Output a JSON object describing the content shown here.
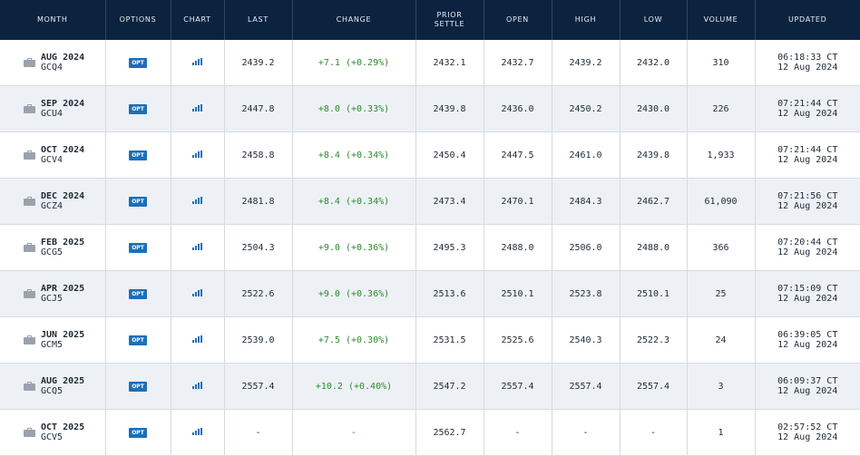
{
  "headers": {
    "month": "MONTH",
    "options": "OPTIONS",
    "chart": "CHART",
    "last": "LAST",
    "change": "CHANGE",
    "prior_settle_1": "PRIOR",
    "prior_settle_2": "SETTLE",
    "open": "OPEN",
    "high": "HIGH",
    "low": "LOW",
    "volume": "VOLUME",
    "updated": "UPDATED"
  },
  "opt_label": "OPT",
  "colors": {
    "header_bg": "#0c2340",
    "change_positive": "#2e8b2e",
    "opt_badge": "#1d6fb8"
  },
  "rows": [
    {
      "month": "AUG 2024",
      "code": "GCQ4",
      "last": "2439.2",
      "change": "+7.1 (+0.29%)",
      "prior": "2432.1",
      "open": "2432.7",
      "high": "2439.2",
      "low": "2432.0",
      "volume": "310",
      "time": "06:18:33 CT",
      "date": "12 Aug 2024"
    },
    {
      "month": "SEP 2024",
      "code": "GCU4",
      "last": "2447.8",
      "change": "+8.0 (+0.33%)",
      "prior": "2439.8",
      "open": "2436.0",
      "high": "2450.2",
      "low": "2430.0",
      "volume": "226",
      "time": "07:21:44 CT",
      "date": "12 Aug 2024"
    },
    {
      "month": "OCT 2024",
      "code": "GCV4",
      "last": "2458.8",
      "change": "+8.4 (+0.34%)",
      "prior": "2450.4",
      "open": "2447.5",
      "high": "2461.0",
      "low": "2439.8",
      "volume": "1,933",
      "time": "07:21:44 CT",
      "date": "12 Aug 2024"
    },
    {
      "month": "DEC 2024",
      "code": "GCZ4",
      "last": "2481.8",
      "change": "+8.4 (+0.34%)",
      "prior": "2473.4",
      "open": "2470.1",
      "high": "2484.3",
      "low": "2462.7",
      "volume": "61,090",
      "time": "07:21:56 CT",
      "date": "12 Aug 2024"
    },
    {
      "month": "FEB 2025",
      "code": "GCG5",
      "last": "2504.3",
      "change": "+9.0 (+0.36%)",
      "prior": "2495.3",
      "open": "2488.0",
      "high": "2506.0",
      "low": "2488.0",
      "volume": "366",
      "time": "07:20:44 CT",
      "date": "12 Aug 2024"
    },
    {
      "month": "APR 2025",
      "code": "GCJ5",
      "last": "2522.6",
      "change": "+9.0 (+0.36%)",
      "prior": "2513.6",
      "open": "2510.1",
      "high": "2523.8",
      "low": "2510.1",
      "volume": "25",
      "time": "07:15:09 CT",
      "date": "12 Aug 2024"
    },
    {
      "month": "JUN 2025",
      "code": "GCM5",
      "last": "2539.0",
      "change": "+7.5 (+0.30%)",
      "prior": "2531.5",
      "open": "2525.6",
      "high": "2540.3",
      "low": "2522.3",
      "volume": "24",
      "time": "06:39:05 CT",
      "date": "12 Aug 2024"
    },
    {
      "month": "AUG 2025",
      "code": "GCQ5",
      "last": "2557.4",
      "change": "+10.2 (+0.40%)",
      "prior": "2547.2",
      "open": "2557.4",
      "high": "2557.4",
      "low": "2557.4",
      "volume": "3",
      "time": "06:09:37 CT",
      "date": "12 Aug 2024"
    },
    {
      "month": "OCT 2025",
      "code": "GCV5",
      "last": "-",
      "change": "-",
      "prior": "2562.7",
      "open": "-",
      "high": "-",
      "low": "-",
      "volume": "1",
      "time": "02:57:52 CT",
      "date": "12 Aug 2024"
    }
  ]
}
